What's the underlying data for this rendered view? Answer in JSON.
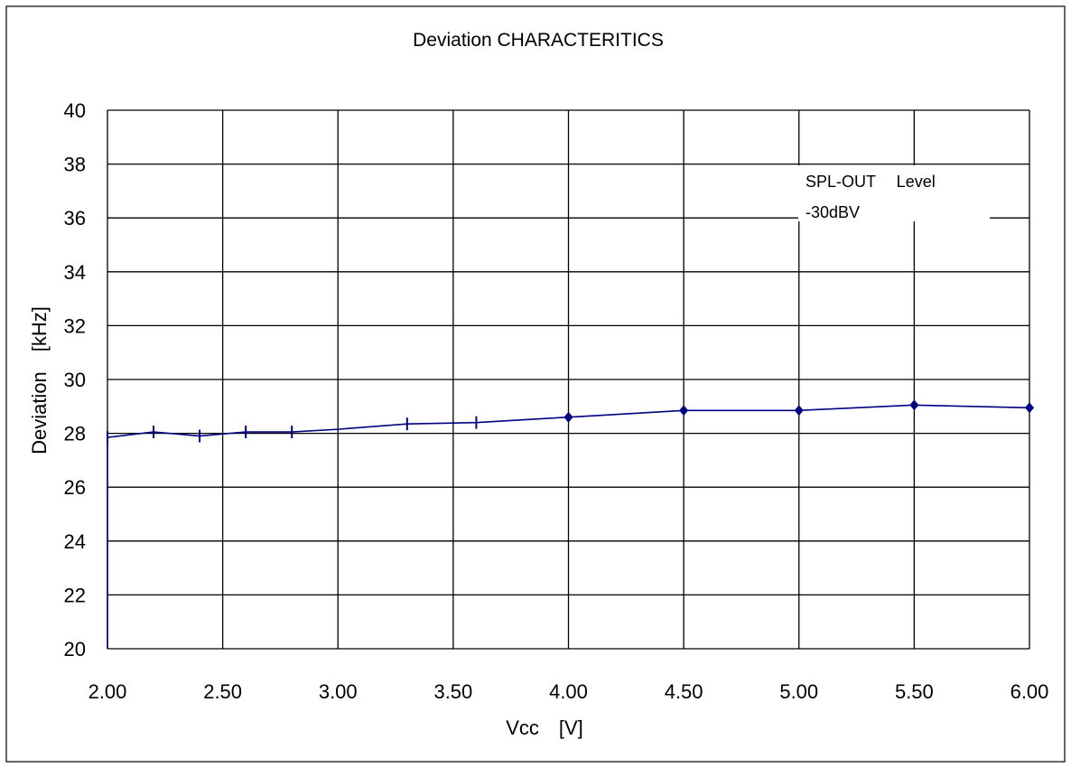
{
  "chart_data": {
    "type": "line",
    "title": "Deviation CHARACTERITICS",
    "xlabel": "Vcc　[V]",
    "ylabel": "Deviation　[kHz]",
    "xlim": [
      2.0,
      6.0
    ],
    "ylim": [
      20,
      40
    ],
    "x_ticks": [
      2.0,
      2.5,
      3.0,
      3.5,
      4.0,
      4.5,
      5.0,
      5.5,
      6.0
    ],
    "x_tick_labels": [
      "2.00",
      "2.50",
      "3.00",
      "3.50",
      "4.00",
      "4.50",
      "5.00",
      "5.50",
      "6.00"
    ],
    "y_ticks": [
      20,
      22,
      24,
      26,
      28,
      30,
      32,
      34,
      36,
      38,
      40
    ],
    "y_tick_labels": [
      "20",
      "22",
      "24",
      "26",
      "28",
      "30",
      "32",
      "34",
      "36",
      "38",
      "40"
    ],
    "grid": true,
    "annotation": {
      "line1": "SPL-OUT　 Level",
      "line2": "-30dBV"
    },
    "series": [
      {
        "color": "#000080",
        "x": [
          2.0,
          2.0,
          2.2,
          2.4,
          2.6,
          2.8,
          3.0,
          3.3,
          3.6,
          4.0,
          4.5,
          5.0,
          5.5,
          6.0
        ],
        "y": [
          20.0,
          27.85,
          28.05,
          27.9,
          28.05,
          28.05,
          28.15,
          28.35,
          28.4,
          28.6,
          28.85,
          28.85,
          29.05,
          28.95
        ],
        "markers": [
          "none",
          "tick",
          "tick",
          "tick",
          "tick",
          "tick",
          "none",
          "tick",
          "tick",
          "diamond",
          "diamond",
          "diamond",
          "diamond",
          "diamond"
        ]
      }
    ]
  }
}
